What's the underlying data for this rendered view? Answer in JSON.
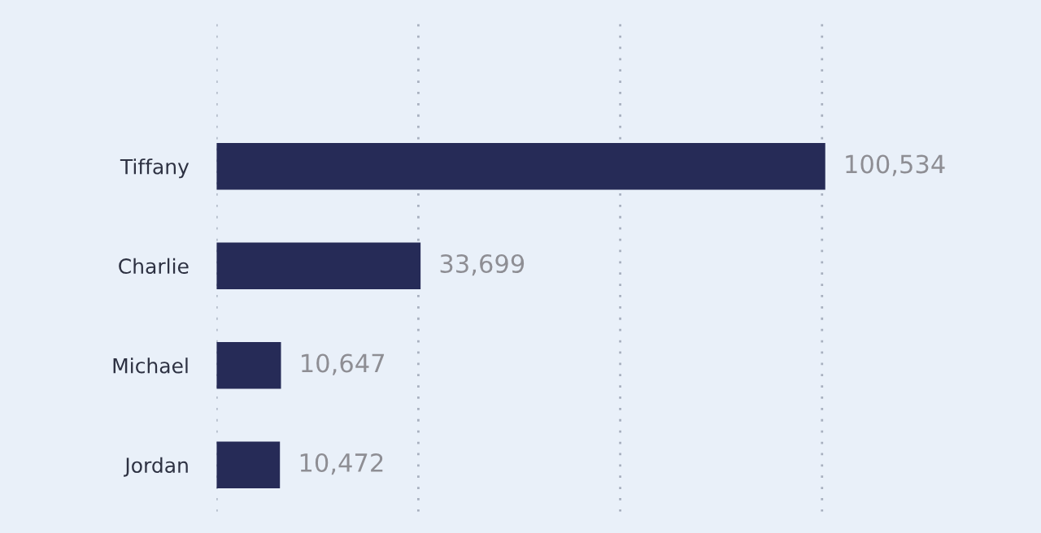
{
  "chart_data": {
    "type": "bar",
    "orientation": "horizontal",
    "categories": [
      "Tiffany",
      "Charlie",
      "Michael",
      "Jordan"
    ],
    "values": [
      100534,
      33699,
      10647,
      10472
    ],
    "value_labels": [
      "100,534",
      "33,699",
      "10,647",
      "10,472"
    ],
    "color": "#262b57",
    "tick_labels": "y",
    "ref_lines": [
      {
        "axis": "x",
        "value": 0,
        "color": "#a8b0bf",
        "line_style": "dotted"
      },
      {
        "axis": "x",
        "value": 33333,
        "color": "#a8b0bf",
        "line_style": "dotted"
      },
      {
        "axis": "x",
        "value": 66667,
        "color": "#a8b0bf",
        "line_style": "dotted"
      },
      {
        "axis": "x",
        "value": 100000,
        "color": "#a8b0bf",
        "line_style": "dotted"
      }
    ]
  }
}
